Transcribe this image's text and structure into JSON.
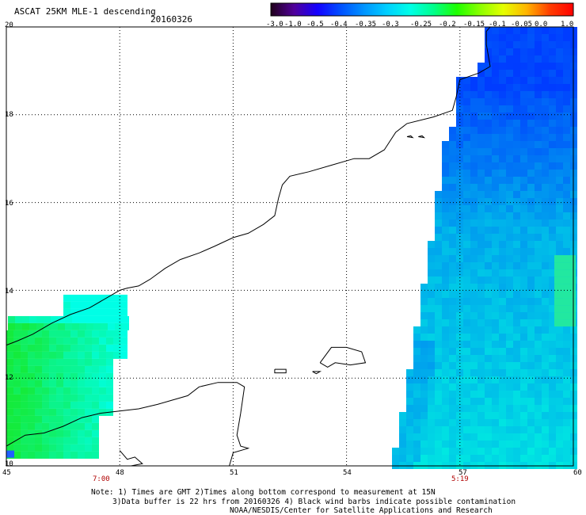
{
  "header": {
    "title": "ASCAT 25KM MLE-1 descending",
    "date": "20160326"
  },
  "colorbar": {
    "labels": [
      "-3.0",
      "-1.0",
      "-0.5",
      "-0.4",
      "-0.35",
      "-0.3",
      "-0.25",
      "-0.2",
      "-0.15",
      "-0.1",
      "-0.05",
      "0.0",
      "1.0"
    ],
    "colors": [
      "#20001a",
      "#50009a",
      "#1400ff",
      "#0050ff",
      "#0094ff",
      "#00d0ff",
      "#00ffe6",
      "#00ff8c",
      "#1eff00",
      "#8cff00",
      "#e6ff00",
      "#ffb400",
      "#ff3c00",
      "#ff0000"
    ]
  },
  "map": {
    "lat_labels": [
      "20",
      "18",
      "16",
      "14",
      "12",
      "10"
    ],
    "lon_labels": [
      "45",
      "48",
      "51",
      "54",
      "57",
      "60"
    ],
    "time_labels": [
      "7:00",
      "5:19"
    ]
  },
  "footer": {
    "note_line1": "Note: 1) Times are GMT 2)Times along bottom correspond to measurement at 15N",
    "note_line2": "3)Data buffer is 22 hrs from 20160326 4) Black wind barbs indicate possible contamination",
    "note_line3": "NOAA/NESDIS/Center for Satellite Applications and Research"
  }
}
